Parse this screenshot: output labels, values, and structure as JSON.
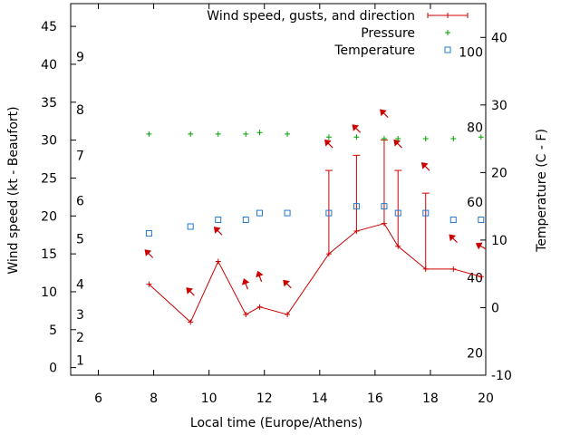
{
  "chart_data": {
    "type": "line",
    "legend": {
      "position": "top-right",
      "entries": [
        {
          "label": "Wind speed, gusts, and direction",
          "color": "#cc0000"
        },
        {
          "label": "Pressure",
          "color": "#00a000"
        },
        {
          "label": "Temperature",
          "color": "#2078d0"
        }
      ]
    },
    "x_axis": {
      "label": "Local time (Europe/Athens)",
      "range": [
        5,
        20
      ],
      "ticks": [
        {
          "v": 6,
          "t": "6"
        },
        {
          "v": 8,
          "t": "8"
        },
        {
          "v": 10,
          "t": "10"
        },
        {
          "v": 12,
          "t": "12"
        },
        {
          "v": 14,
          "t": "14"
        },
        {
          "v": 16,
          "t": "16"
        },
        {
          "v": 18,
          "t": "18"
        },
        {
          "v": 20,
          "t": "20"
        }
      ]
    },
    "y_left": {
      "label": "Wind speed (kt - Beaufort)",
      "range": [
        -1,
        48
      ],
      "ticks": [
        {
          "v": 0,
          "t": "0"
        },
        {
          "v": 5,
          "t": "5"
        },
        {
          "v": 10,
          "t": "10"
        },
        {
          "v": 15,
          "t": "15"
        },
        {
          "v": 20,
          "t": "20"
        },
        {
          "v": 25,
          "t": "25"
        },
        {
          "v": 30,
          "t": "30"
        },
        {
          "v": 35,
          "t": "35"
        },
        {
          "v": 40,
          "t": "40"
        },
        {
          "v": 45,
          "t": "45"
        }
      ],
      "beaufort": [
        {
          "v": 1,
          "t": "1"
        },
        {
          "v": 4,
          "t": "2"
        },
        {
          "v": 7,
          "t": "3"
        },
        {
          "v": 11,
          "t": "4"
        },
        {
          "v": 17,
          "t": "5"
        },
        {
          "v": 22,
          "t": "6"
        },
        {
          "v": 28,
          "t": "7"
        },
        {
          "v": 34,
          "t": "8"
        },
        {
          "v": 41,
          "t": "9"
        }
      ]
    },
    "y_right": {
      "label": "Temperature (C - F)",
      "range": [
        -10,
        45
      ],
      "ticks": [
        {
          "v": -10,
          "t": "-10"
        },
        {
          "v": 0,
          "t": "0"
        },
        {
          "v": 10,
          "t": "10"
        },
        {
          "v": 20,
          "t": "20"
        },
        {
          "v": 30,
          "t": "30"
        },
        {
          "v": 40,
          "t": "40"
        }
      ],
      "fahrenheit": [
        {
          "v": -6.7,
          "t": "20"
        },
        {
          "v": 4.4,
          "t": "40"
        },
        {
          "v": 15.6,
          "t": "60"
        },
        {
          "v": 26.7,
          "t": "80"
        },
        {
          "v": 37.8,
          "t": "100"
        }
      ]
    },
    "series": [
      {
        "name": "Wind speed, gusts, and direction",
        "x": [
          7.83,
          9.33,
          10.33,
          11.33,
          11.83,
          12.83,
          14.33,
          15.33,
          16.33,
          16.83,
          17.83,
          18.83,
          19.83
        ],
        "values": [
          11,
          6,
          14,
          7,
          8,
          7,
          15,
          18,
          19,
          16,
          13,
          13,
          12
        ],
        "gusts": [
          null,
          null,
          null,
          null,
          null,
          null,
          26,
          28,
          30,
          26,
          23,
          null,
          null
        ],
        "direction_deg": [
          315,
          315,
          315,
          340,
          340,
          315,
          315,
          315,
          315,
          315,
          315,
          315,
          300
        ]
      },
      {
        "name": "Pressure",
        "x": [
          7.83,
          9.33,
          10.33,
          11.33,
          11.83,
          12.83,
          14.33,
          15.33,
          16.33,
          16.83,
          17.83,
          18.83,
          19.83
        ],
        "values": [
          30.8,
          30.8,
          30.8,
          30.8,
          31.0,
          30.8,
          30.4,
          30.4,
          30.2,
          30.2,
          30.2,
          30.2,
          30.4
        ]
      },
      {
        "name": "Temperature",
        "x": [
          7.83,
          9.33,
          10.33,
          11.33,
          11.83,
          12.83,
          14.33,
          15.33,
          16.33,
          16.83,
          17.83,
          18.83,
          19.83
        ],
        "values": [
          11,
          12,
          13,
          13,
          14,
          14,
          14,
          15,
          15,
          14,
          14,
          13,
          13
        ]
      }
    ]
  }
}
